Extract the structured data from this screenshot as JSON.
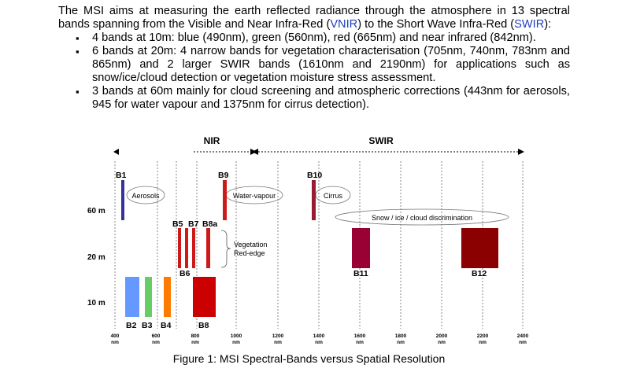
{
  "text": {
    "intro_a": "The MSI aims at measuring the earth reflected radiance through the atmosphere in 13 spectral bands spanning from the Visible and Near Infra-Red (",
    "vnir": "VNIR",
    "intro_b": ") to the Short Wave Infra-Red (",
    "swir": "SWIR",
    "intro_c": "):",
    "bullets": [
      "4 bands at 10m: blue (490nm), green (560nm), red (665nm) and near infrared (842nm).",
      "6 bands at 20m: 4 narrow bands for vegetation characterisation (705nm, 740nm, 783nm and 865nm) and 2 larger SWIR bands (1610nm and 2190nm) for applications such as snow/ice/cloud detection or vegetation moisture stress assessment.",
      "3 bands at 60m mainly for cloud screening and atmospheric corrections (443nm for aerosols, 945 for water vapour and 1375nm for cirrus detection)."
    ]
  },
  "colors": {
    "link": "#1f3fbf",
    "b1": "#333399",
    "b2": "#6699ff",
    "b3": "#66cc66",
    "b4": "#ff7a00",
    "b5_b7_b8a": "#cc1a1a",
    "b8": "#cc0000",
    "b9": "#cc1a1a",
    "b10": "#991a33",
    "b11": "#990033",
    "b12": "#8b0000"
  },
  "figure": {
    "region_labels": {
      "nir": "NIR",
      "swir": "SWIR"
    },
    "resolution_labels": [
      "60 m",
      "20 m",
      "10 m"
    ],
    "x_ticks": [
      {
        "value": 400,
        "label": "400",
        "unit": "nm"
      },
      {
        "value": 600,
        "label": "600",
        "unit": "nm"
      },
      {
        "value": 800,
        "label": "800",
        "unit": "nm"
      },
      {
        "value": 1000,
        "label": "1000",
        "unit": "nm"
      },
      {
        "value": 1200,
        "label": "1200",
        "unit": "nm"
      },
      {
        "value": 1400,
        "label": "1400",
        "unit": "nm"
      },
      {
        "value": 1600,
        "label": "1600",
        "unit": "nm"
      },
      {
        "value": 1800,
        "label": "1800",
        "unit": "nm"
      },
      {
        "value": 2000,
        "label": "2000",
        "unit": "nm"
      },
      {
        "value": 2200,
        "label": "2200",
        "unit": "nm"
      },
      {
        "value": 2400,
        "label": "2400",
        "unit": "nm"
      }
    ],
    "bands": [
      {
        "name": "B1",
        "resolution": "60 m",
        "center_nm": 443
      },
      {
        "name": "B2",
        "resolution": "10 m",
        "center_nm": 490
      },
      {
        "name": "B3",
        "resolution": "10 m",
        "center_nm": 560
      },
      {
        "name": "B4",
        "resolution": "10 m",
        "center_nm": 665
      },
      {
        "name": "B5",
        "resolution": "20 m",
        "center_nm": 705
      },
      {
        "name": "B6",
        "resolution": "20 m",
        "center_nm": 740
      },
      {
        "name": "B7",
        "resolution": "20 m",
        "center_nm": 783
      },
      {
        "name": "B8",
        "resolution": "10 m",
        "center_nm": 842
      },
      {
        "name": "B8a",
        "resolution": "20 m",
        "center_nm": 865
      },
      {
        "name": "B9",
        "resolution": "60 m",
        "center_nm": 945
      },
      {
        "name": "B10",
        "resolution": "60 m",
        "center_nm": 1375
      },
      {
        "name": "B11",
        "resolution": "20 m",
        "center_nm": 1610
      },
      {
        "name": "B12",
        "resolution": "20 m",
        "center_nm": 2190
      }
    ],
    "annotations": {
      "aerosols": "Aerosols",
      "water_vapour": "Water-vapour",
      "cirrus": "Cirrus",
      "snow": "Snow / ice / cloud discrimination",
      "vegetation": "Vegetation",
      "red_edge": "Red-edge"
    },
    "caption": "Figure 1: MSI Spectral-Bands versus Spatial Resolution"
  }
}
